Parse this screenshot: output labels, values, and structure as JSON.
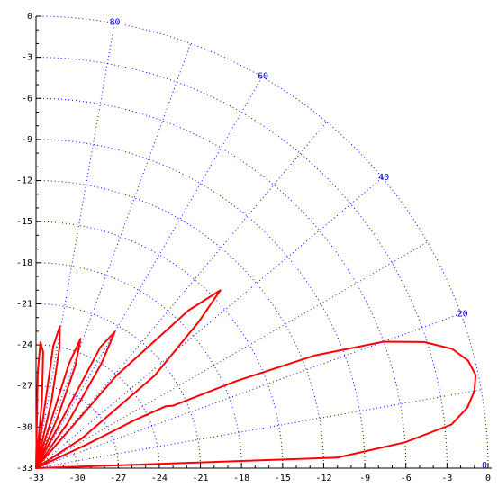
{
  "chart_data": {
    "type": "polar-line",
    "title": "",
    "radial_range_db": [
      -33,
      0
    ],
    "radial_ticks": [
      "-33",
      "-30",
      "-27",
      "-24",
      "-21",
      "-18",
      "-15",
      "-12",
      "-9",
      "-6",
      "-3",
      "0"
    ],
    "y_tick_labels": [
      "0",
      "-3",
      "-6",
      "-9",
      "-12",
      "-15",
      "-18",
      "-21",
      "-24",
      "-27",
      "-30",
      "-33"
    ],
    "x_tick_labels": [
      "-33",
      "-30",
      "-27",
      "-24",
      "-21",
      "-18",
      "-15",
      "-12",
      "-9",
      "-6",
      "-3",
      "0"
    ],
    "angle_labels": [
      "0",
      "20",
      "40",
      "60",
      "80"
    ],
    "grid": true,
    "series": [
      {
        "points_deg_db": [
          [
            0,
            -33
          ],
          [
            2,
            -11
          ],
          [
            4,
            -6
          ],
          [
            6,
            -2.5
          ],
          [
            8,
            -1.2
          ],
          [
            10,
            -0.5
          ],
          [
            12,
            -0.2
          ],
          [
            14,
            -0.5
          ],
          [
            16,
            -1.4
          ],
          [
            18,
            -3.2
          ],
          [
            20,
            -6
          ],
          [
            22,
            -11
          ],
          [
            23.5,
            -17
          ],
          [
            24.5,
            -22
          ],
          [
            25.5,
            -22.5
          ],
          [
            26,
            -25
          ],
          [
            25,
            -29
          ],
          [
            30,
            -33
          ],
          [
            33,
            -29
          ],
          [
            38,
            -22
          ],
          [
            42,
            -17
          ],
          [
            44,
            -14.3
          ],
          [
            46,
            -17
          ],
          [
            49,
            -24
          ],
          [
            52,
            -33
          ],
          [
            55,
            -29
          ],
          [
            58,
            -24
          ],
          [
            60,
            -21.5
          ],
          [
            62,
            -23
          ],
          [
            65,
            -33
          ],
          [
            67,
            -29
          ],
          [
            69,
            -25
          ],
          [
            71,
            -23
          ],
          [
            72.5,
            -25
          ],
          [
            75,
            -33
          ],
          [
            77,
            -28
          ],
          [
            79,
            -24
          ],
          [
            80.5,
            -22.5
          ],
          [
            82,
            -24
          ],
          [
            84,
            -33
          ],
          [
            85,
            -28
          ],
          [
            86.5,
            -24.5
          ],
          [
            88,
            -23.8
          ],
          [
            89,
            -26
          ],
          [
            90,
            -33
          ]
        ],
        "color": "#ff0000"
      }
    ],
    "colors": {
      "curve": "#ff0000",
      "grid": "#0000ff",
      "angle_label": "#0000cc",
      "axis": "#000000"
    }
  }
}
